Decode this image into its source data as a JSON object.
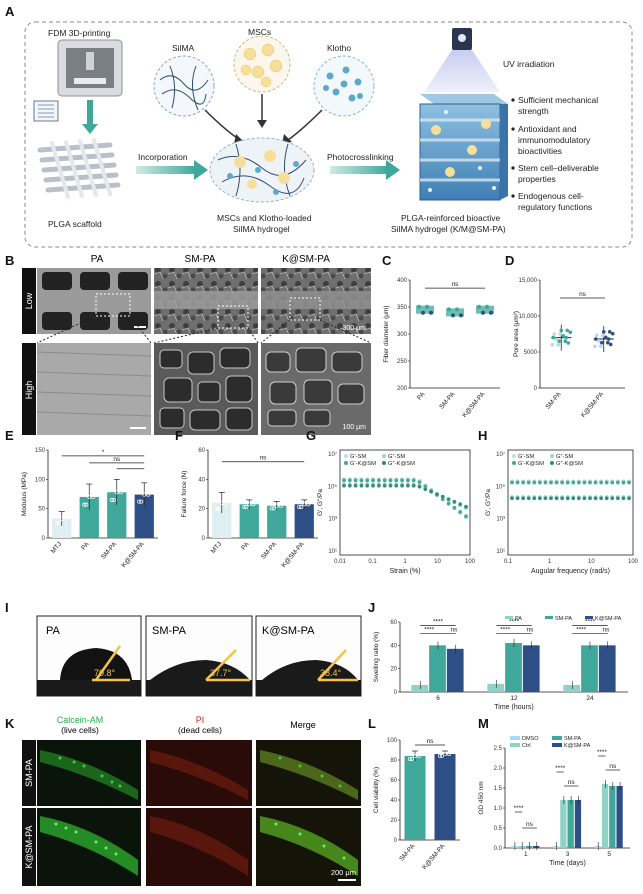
{
  "colors": {
    "teal": "#3fa89a",
    "teal_light": "#a9dcd4",
    "navy": "#2e4f86",
    "gel_blue": "#4f8fbf",
    "green_fluo": "#3ccc3c",
    "red_fluo": "#7a1e12"
  },
  "panels": {
    "A": {
      "label": "A",
      "fdm": "FDM 3D-printing",
      "silma": "SilMA",
      "mscs": "MSCs",
      "klotho": "Klotho",
      "uv": "UV irradiation",
      "incorporation": "Incorporation",
      "photocrosslinking": "Photocrosslinking",
      "plga": "PLGA scaffold",
      "loaded": [
        "MSCs and Klotho-loaded",
        "SilMA  hydrogel"
      ],
      "result": [
        "PLGA-reinforced bioactive",
        "SilMA hydrogel (K/M@SM-PA)"
      ],
      "bullets": [
        [
          "Sufficient mechanical",
          "strength"
        ],
        [
          "Antioxidant and",
          "immunomodulatory",
          "bioactivities"
        ],
        [
          "Stem cell–deliverable",
          "properties"
        ],
        [
          "Endogenous cell-",
          "regulatory functions"
        ]
      ]
    },
    "B": {
      "label": "B",
      "cols": [
        "PA",
        "SM-PA",
        "K@SM-PA"
      ],
      "rows": [
        "Low",
        "High"
      ],
      "scale_low": "300 μm",
      "scale_high": "100 μm"
    },
    "C": {
      "label": "C",
      "chart_data": {
        "type": "scatter",
        "ylabel": "Fiber diameter (μm)",
        "categories": [
          "PA",
          "SM-PA",
          "K@SM-PA"
        ],
        "ylim": [
          200,
          400
        ],
        "yticks": [
          "200",
          "250",
          "300",
          "350",
          "400"
        ],
        "means": [
          345,
          340,
          345
        ],
        "sig": "ns"
      }
    },
    "D": {
      "label": "D",
      "chart_data": {
        "type": "scatter",
        "ylabel": "Pore area (μm²)",
        "categories": [
          "SM-PA",
          "K@SM-PA"
        ],
        "ylim": [
          0,
          15000
        ],
        "yticks": [
          "0",
          "5000",
          "10,000",
          "15,000"
        ],
        "means": [
          7000,
          6800
        ],
        "sig": "ns"
      }
    },
    "E": {
      "label": "E",
      "chart_data": {
        "type": "bar",
        "ylabel": "Modulus (MPa)",
        "categories": [
          "MTJ",
          "PA",
          "SM-PA",
          "K@SM-PA"
        ],
        "values": [
          33,
          70,
          78,
          74
        ],
        "errors": [
          12,
          22,
          22,
          20
        ],
        "ylim": [
          0,
          150
        ],
        "yticks": [
          "0",
          "50",
          "100",
          "150"
        ],
        "sig": [
          "*",
          "ns"
        ]
      }
    },
    "F": {
      "label": "F",
      "chart_data": {
        "type": "bar",
        "ylabel": "Failure force (N)",
        "categories": [
          "MTJ",
          "PA",
          "SM-PA",
          "K@SM-PA"
        ],
        "values": [
          24,
          23,
          22,
          23
        ],
        "errors": [
          7,
          3,
          3,
          3
        ],
        "ylim": [
          0,
          60
        ],
        "yticks": [
          "0",
          "20",
          "40",
          "60"
        ],
        "sig": "ns"
      }
    },
    "G": {
      "label": "G",
      "chart_data": {
        "type": "line",
        "xlabel": "Strain (%)",
        "ylabel": "G′, G″/Pa",
        "xticks": [
          "0.01",
          "0.1",
          "1",
          "10",
          "100"
        ],
        "yticks": [
          "10⁷",
          "10⁵",
          "10³",
          "10¹"
        ],
        "legend": [
          "G′-SM",
          "G″-SM",
          "G′-K@SM",
          "G″-K@SM"
        ]
      }
    },
    "H": {
      "label": "H",
      "chart_data": {
        "type": "line",
        "xlabel": "Augular frequency (rad/s)",
        "ylabel": "G′, G″/Pa",
        "xticks": [
          "0.1",
          "1",
          "10",
          "100"
        ],
        "yticks": [
          "10⁷",
          "10⁵",
          "10³",
          "10¹"
        ],
        "legend": [
          "G′-SM",
          "G″-SM",
          "G′-K@SM",
          "G″-K@SM"
        ]
      }
    },
    "I": {
      "label": "I",
      "names": [
        "PA",
        "SM-PA",
        "K@SM-PA"
      ],
      "angles": [
        "70.8°",
        "37.7°",
        "38.4°"
      ]
    },
    "J": {
      "label": "J",
      "chart_data": {
        "type": "bar",
        "ylabel": "Swelling ratio (%)",
        "xlabel": "Time (hours)",
        "categories": [
          "6",
          "12",
          "24"
        ],
        "legend": [
          "PA",
          "SM-PA",
          "K@SM-PA"
        ],
        "series": [
          {
            "name": "PA",
            "values": [
              6,
              7,
              6
            ]
          },
          {
            "name": "SM-PA",
            "values": [
              40,
              42,
              40
            ]
          },
          {
            "name": "K@SM-PA",
            "values": [
              37,
              40,
              40
            ]
          }
        ],
        "ylim": [
          0,
          60
        ],
        "yticks": [
          "0",
          "20",
          "40",
          "60"
        ],
        "sig": [
          "****",
          "****",
          "ns"
        ]
      }
    },
    "K": {
      "label": "K",
      "cols": [
        "Calcein-AM",
        "(live cells)",
        "PI",
        "(dead cells)",
        "Merge"
      ],
      "rows": [
        "SM-PA",
        "K@SM-PA"
      ],
      "scale": "200 μm"
    },
    "L": {
      "label": "L",
      "chart_data": {
        "type": "bar",
        "ylabel": "Cell viability (%)",
        "categories": [
          "SM-PA",
          "K@SM-PA"
        ],
        "values": [
          84,
          86
        ],
        "errors": [
          5,
          3
        ],
        "ylim": [
          0,
          100
        ],
        "yticks": [
          "0",
          "20",
          "40",
          "60",
          "80",
          "100"
        ],
        "sig": "ns"
      }
    },
    "M": {
      "label": "M",
      "chart_data": {
        "type": "bar",
        "ylabel": "OD 450 nm",
        "xlabel": "Time (days)",
        "categories": [
          "1",
          "3",
          "5"
        ],
        "legend": [
          "DMSO",
          "Ctrl",
          "SM-PA",
          "K@SM-PA"
        ],
        "series": [
          {
            "name": "DMSO",
            "values": [
              0.05,
              0.05,
              0.05
            ]
          },
          {
            "name": "Ctrl",
            "values": [
              0.05,
              1.2,
              1.6
            ]
          },
          {
            "name": "SM-PA",
            "values": [
              0.05,
              1.2,
              1.55
            ]
          },
          {
            "name": "K@SM-PA",
            "values": [
              0.05,
              1.2,
              1.55
            ]
          }
        ],
        "ylim": [
          0,
          2.5
        ],
        "yticks": [
          "0.0",
          "0.5",
          "1.0",
          "1.5",
          "2.0",
          "2.5"
        ],
        "sig": [
          "****",
          "ns"
        ]
      }
    }
  }
}
